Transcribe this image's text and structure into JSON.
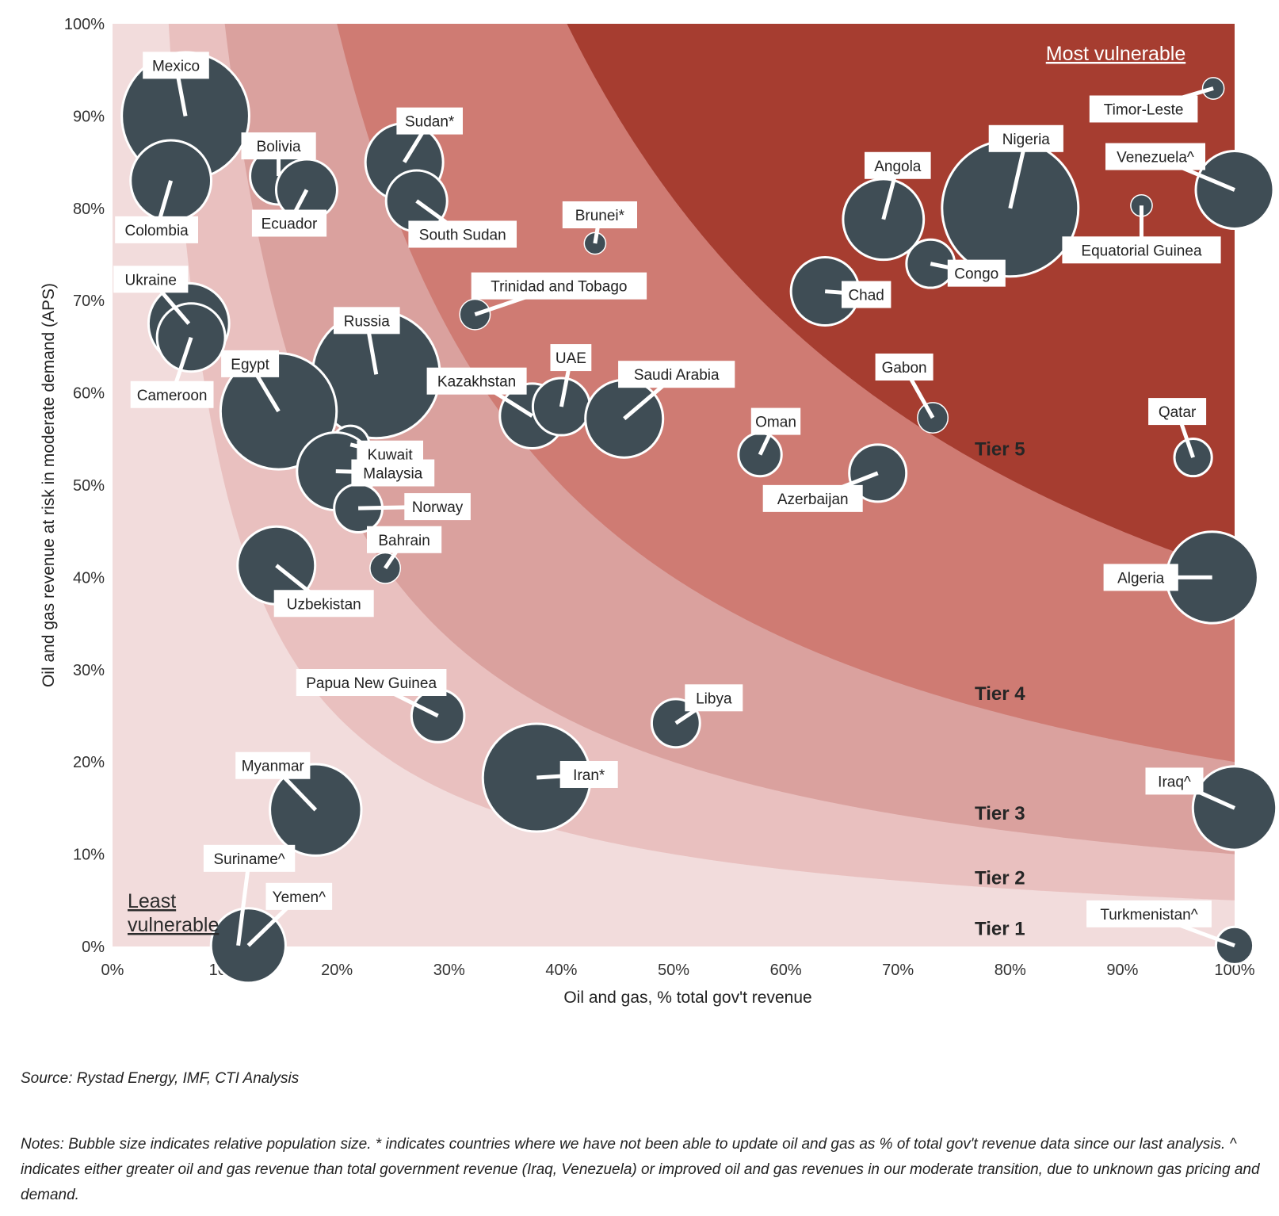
{
  "chart_data": {
    "type": "scatter",
    "subtype": "bubble",
    "xlabel": "Oil and gas, % total gov't revenue",
    "ylabel": "Oil and gas revenue at  risk in moderate demand (APS)",
    "xlim": [
      0,
      100
    ],
    "ylim": [
      0,
      100
    ],
    "x_ticks": [
      "0%",
      "10%",
      "20%",
      "30%",
      "40%",
      "50%",
      "60%",
      "70%",
      "80%",
      "90%",
      "100%"
    ],
    "y_ticks": [
      "0%",
      "10%",
      "20%",
      "30%",
      "40%",
      "50%",
      "60%",
      "70%",
      "80%",
      "90%",
      "100%"
    ],
    "corner_labels": {
      "most": "Most vulnerable",
      "least_line1": "Least",
      "least_line2": "vulnerable"
    },
    "tiers": [
      {
        "name": "Tier 1",
        "color": "#f2dcdc",
        "label_y": 2
      },
      {
        "name": "Tier 2",
        "color": "#e9c0bf",
        "label_y": 7.5
      },
      {
        "name": "Tier 3",
        "color": "#daa19e",
        "label_y": 14.5
      },
      {
        "name": "Tier 4",
        "color": "#cf7b73",
        "label_y": 27.5
      },
      {
        "name": "Tier 5",
        "color": "#a63d30",
        "label_y": 54
      }
    ],
    "tier_boundaries_xy_product": [
      500,
      1000,
      2000,
      4050
    ],
    "bubble_color": "#3f4d55",
    "points": [
      {
        "name": "Mexico",
        "x": 6.5,
        "y": 90,
        "size": 3.5
      },
      {
        "name": "Colombia",
        "x": 5.2,
        "y": 83,
        "size": 1.4
      },
      {
        "name": "Bolivia",
        "x": 14.8,
        "y": 83.5,
        "size": 0.7
      },
      {
        "name": "Ecuador",
        "x": 17.3,
        "y": 82,
        "size": 0.8
      },
      {
        "name": "Sudan*",
        "x": 26,
        "y": 85,
        "size": 1.3
      },
      {
        "name": "South Sudan",
        "x": 27.1,
        "y": 80.8,
        "size": 0.8
      },
      {
        "name": "Brunei*",
        "x": 43,
        "y": 76.2,
        "size": 0.1
      },
      {
        "name": "Ukraine",
        "x": 6.8,
        "y": 67.5,
        "size": 1.4
      },
      {
        "name": "Cameroon",
        "x": 7,
        "y": 66,
        "size": 1.0
      },
      {
        "name": "Trinidad and Tobago",
        "x": 32.3,
        "y": 68.5,
        "size": 0.2
      },
      {
        "name": "Russia",
        "x": 23.5,
        "y": 62,
        "size": 3.5
      },
      {
        "name": "Egypt",
        "x": 14.8,
        "y": 58,
        "size": 2.9
      },
      {
        "name": "Kazakhstan",
        "x": 37.4,
        "y": 57.5,
        "size": 0.9
      },
      {
        "name": "UAE",
        "x": 40,
        "y": 58.5,
        "size": 0.7
      },
      {
        "name": "Saudi Arabia",
        "x": 45.6,
        "y": 57.2,
        "size": 1.3
      },
      {
        "name": "Kuwait",
        "x": 21.2,
        "y": 54.4,
        "size": 0.3
      },
      {
        "name": "Malaysia",
        "x": 19.9,
        "y": 51.5,
        "size": 1.3
      },
      {
        "name": "Norway",
        "x": 21.9,
        "y": 47.5,
        "size": 0.5
      },
      {
        "name": "Bahrain",
        "x": 24.3,
        "y": 41,
        "size": 0.2
      },
      {
        "name": "Uzbekistan",
        "x": 14.6,
        "y": 41.3,
        "size": 1.3
      },
      {
        "name": "Papua New Guinea",
        "x": 29,
        "y": 25,
        "size": 0.6
      },
      {
        "name": "Libya",
        "x": 50.2,
        "y": 24.2,
        "size": 0.5
      },
      {
        "name": "Iran*",
        "x": 37.8,
        "y": 18.3,
        "size": 2.5
      },
      {
        "name": "Myanmar",
        "x": 18.1,
        "y": 14.8,
        "size": 1.8
      },
      {
        "name": "Suriname^",
        "x": 11.2,
        "y": 0.1,
        "size": 0.1
      },
      {
        "name": "Yemen^",
        "x": 12.1,
        "y": 0.1,
        "size": 1.2
      },
      {
        "name": "Oman",
        "x": 57.7,
        "y": 53.3,
        "size": 0.4
      },
      {
        "name": "Azerbaijan",
        "x": 68.2,
        "y": 51.3,
        "size": 0.7
      },
      {
        "name": "Gabon",
        "x": 73.1,
        "y": 57.3,
        "size": 0.2
      },
      {
        "name": "Chad",
        "x": 63.5,
        "y": 71,
        "size": 1.0
      },
      {
        "name": "Congo",
        "x": 72.9,
        "y": 74,
        "size": 0.5
      },
      {
        "name": "Angola",
        "x": 68.7,
        "y": 78.8,
        "size": 1.4
      },
      {
        "name": "Nigeria",
        "x": 80,
        "y": 80,
        "size": 4.0
      },
      {
        "name": "Equatorial Guinea",
        "x": 91.7,
        "y": 80.3,
        "size": 0.1
      },
      {
        "name": "Timor-Leste",
        "x": 98.1,
        "y": 93,
        "size": 0.1
      },
      {
        "name": "Venezuela^",
        "x": 100,
        "y": 82,
        "size": 1.3
      },
      {
        "name": "Qatar",
        "x": 96.3,
        "y": 53,
        "size": 0.3
      },
      {
        "name": "Algeria",
        "x": 98,
        "y": 40,
        "size": 1.8
      },
      {
        "name": "Iraq^",
        "x": 100,
        "y": 15,
        "size": 1.5
      },
      {
        "name": "Turkmenistan^",
        "x": 100,
        "y": 0.1,
        "size": 0.3
      }
    ]
  },
  "footer": {
    "source": "Source: Rystad Energy, IMF, CTI Analysis",
    "notes_line1": "Notes: Bubble size indicates relative population size. * indicates countries where we have not been able to update oil and gas as % of total gov't revenue data since our last analysis. ^",
    "notes_line2": "indicates either greater oil and gas revenue than total government revenue (Iraq, Venezuela) or improved oil and gas revenues in our moderate transition, due to unknown gas pricing and",
    "notes_line3": "demand."
  }
}
